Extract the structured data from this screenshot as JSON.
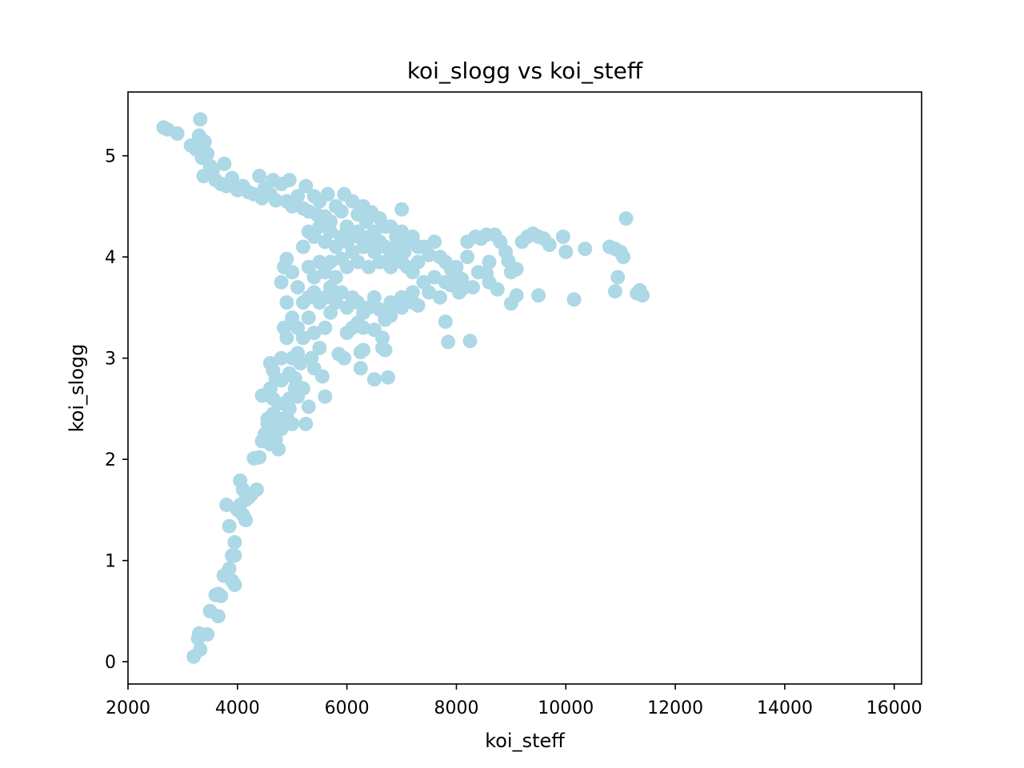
{
  "chart_data": {
    "type": "scatter",
    "title": "koi_slogg vs koi_steff",
    "xlabel": "koi_steff",
    "ylabel": "koi_slogg",
    "xlim": [
      2000,
      16500
    ],
    "ylim": [
      -0.22,
      5.63
    ],
    "xticks": [
      2000,
      4000,
      6000,
      8000,
      10000,
      12000,
      14000,
      16000
    ],
    "yticks": [
      0,
      1,
      2,
      3,
      4,
      5
    ],
    "grid": false,
    "legend": "none",
    "marker_color": "#add8e6",
    "points": [
      [
        2650,
        5.28
      ],
      [
        2720,
        5.26
      ],
      [
        2900,
        5.22
      ],
      [
        3150,
        5.1
      ],
      [
        3250,
        5.06
      ],
      [
        3300,
        5.2
      ],
      [
        3320,
        5.36
      ],
      [
        3400,
        5.14
      ],
      [
        3450,
        5.02
      ],
      [
        3350,
        4.98
      ],
      [
        3380,
        4.8
      ],
      [
        3500,
        4.9
      ],
      [
        3550,
        4.86
      ],
      [
        3600,
        4.76
      ],
      [
        3700,
        4.72
      ],
      [
        3800,
        4.7
      ],
      [
        3760,
        4.92
      ],
      [
        3900,
        4.78
      ],
      [
        4000,
        4.66
      ],
      [
        4100,
        4.7
      ],
      [
        4200,
        4.64
      ],
      [
        4300,
        4.62
      ],
      [
        4400,
        4.8
      ],
      [
        4450,
        4.58
      ],
      [
        4500,
        4.68
      ],
      [
        4600,
        4.62
      ],
      [
        4650,
        4.76
      ],
      [
        4700,
        4.56
      ],
      [
        4800,
        4.72
      ],
      [
        4900,
        4.55
      ],
      [
        4950,
        4.76
      ],
      [
        5000,
        4.5
      ],
      [
        5100,
        4.6
      ],
      [
        5200,
        4.48
      ],
      [
        5250,
        4.7
      ],
      [
        5300,
        4.45
      ],
      [
        5400,
        4.6
      ],
      [
        5450,
        4.42
      ],
      [
        5500,
        4.55
      ],
      [
        5600,
        4.4
      ],
      [
        5650,
        4.62
      ],
      [
        5700,
        4.35
      ],
      [
        5800,
        4.5
      ],
      [
        5900,
        4.45
      ],
      [
        5950,
        4.62
      ],
      [
        6000,
        4.3
      ],
      [
        6100,
        4.55
      ],
      [
        6200,
        4.42
      ],
      [
        6300,
        4.5
      ],
      [
        6350,
        4.35
      ],
      [
        6450,
        4.44
      ],
      [
        6500,
        4.25
      ],
      [
        6600,
        4.38
      ],
      [
        6700,
        4.3
      ],
      [
        6800,
        4.3
      ],
      [
        6900,
        4.2
      ],
      [
        7000,
        4.25
      ],
      [
        7000,
        4.47
      ],
      [
        7100,
        4.15
      ],
      [
        7200,
        4.2
      ],
      [
        7300,
        4.1
      ],
      [
        7400,
        4.1
      ],
      [
        7500,
        4.02
      ],
      [
        7600,
        4.15
      ],
      [
        7700,
        4.0
      ],
      [
        7800,
        3.95
      ],
      [
        7900,
        3.88
      ],
      [
        8000,
        3.82
      ],
      [
        8100,
        3.78
      ],
      [
        8200,
        4.15
      ],
      [
        8350,
        4.2
      ],
      [
        8450,
        4.18
      ],
      [
        8550,
        4.22
      ],
      [
        8700,
        4.22
      ],
      [
        8800,
        4.15
      ],
      [
        8900,
        4.05
      ],
      [
        8950,
        3.96
      ],
      [
        9000,
        3.85
      ],
      [
        9100,
        3.88
      ],
      [
        9200,
        4.15
      ],
      [
        9300,
        4.2
      ],
      [
        9400,
        4.23
      ],
      [
        9500,
        4.2
      ],
      [
        9600,
        4.18
      ],
      [
        9700,
        4.12
      ],
      [
        9950,
        4.2
      ],
      [
        10000,
        4.05
      ],
      [
        10350,
        4.08
      ],
      [
        10800,
        4.1
      ],
      [
        10900,
        4.08
      ],
      [
        11000,
        4.05
      ],
      [
        11050,
        4.0
      ],
      [
        11100,
        4.38
      ],
      [
        10950,
        3.8
      ],
      [
        10900,
        3.66
      ],
      [
        11300,
        3.64
      ],
      [
        11350,
        3.67
      ],
      [
        11400,
        3.62
      ],
      [
        10150,
        3.58
      ],
      [
        9500,
        3.62
      ],
      [
        9100,
        3.62
      ],
      [
        9000,
        3.54
      ],
      [
        8750,
        3.68
      ],
      [
        8550,
        3.84
      ],
      [
        8600,
        3.75
      ],
      [
        8300,
        3.7
      ],
      [
        8100,
        3.68
      ],
      [
        8050,
        3.65
      ],
      [
        7900,
        3.72
      ],
      [
        7700,
        3.6
      ],
      [
        7500,
        3.65
      ],
      [
        7300,
        3.52
      ],
      [
        7200,
        3.55
      ],
      [
        7000,
        3.5
      ],
      [
        6800,
        3.42
      ],
      [
        6700,
        3.38
      ],
      [
        6650,
        3.2
      ],
      [
        6650,
        3.1
      ],
      [
        6700,
        3.08
      ],
      [
        6500,
        3.28
      ],
      [
        6300,
        3.3
      ],
      [
        6250,
        3.06
      ],
      [
        6300,
        3.08
      ],
      [
        6200,
        3.35
      ],
      [
        6100,
        3.3
      ],
      [
        6000,
        3.25
      ],
      [
        5850,
        3.04
      ],
      [
        5950,
        3.0
      ],
      [
        6250,
        2.9
      ],
      [
        6500,
        2.79
      ],
      [
        6750,
        2.81
      ],
      [
        7800,
        3.36
      ],
      [
        7850,
        3.16
      ],
      [
        8250,
        3.17
      ],
      [
        5800,
        3.6
      ],
      [
        5700,
        3.45
      ],
      [
        5600,
        3.3
      ],
      [
        5500,
        3.1
      ],
      [
        5550,
        2.82
      ],
      [
        5600,
        2.62
      ],
      [
        5400,
        2.9
      ],
      [
        5350,
        3.0
      ],
      [
        5300,
        2.52
      ],
      [
        5200,
        2.7
      ],
      [
        5250,
        2.35
      ],
      [
        5100,
        2.62
      ],
      [
        5000,
        2.35
      ],
      [
        5050,
        2.8
      ],
      [
        4950,
        2.5
      ],
      [
        4900,
        2.42
      ],
      [
        4800,
        2.3
      ],
      [
        4750,
        2.55
      ],
      [
        4700,
        2.2
      ],
      [
        4650,
        2.6
      ],
      [
        4600,
        2.95
      ],
      [
        4700,
        2.8
      ],
      [
        4800,
        3.0
      ],
      [
        4850,
        3.3
      ],
      [
        4900,
        3.2
      ],
      [
        5000,
        3.4
      ],
      [
        4900,
        3.55
      ],
      [
        4800,
        3.75
      ],
      [
        4850,
        3.9
      ],
      [
        4900,
        3.98
      ],
      [
        5000,
        3.85
      ],
      [
        5100,
        3.7
      ],
      [
        5200,
        3.55
      ],
      [
        5300,
        3.9
      ],
      [
        5400,
        3.8
      ],
      [
        5500,
        3.95
      ],
      [
        5600,
        3.85
      ],
      [
        5700,
        3.95
      ],
      [
        5800,
        3.8
      ],
      [
        5900,
        3.98
      ],
      [
        6000,
        3.9
      ],
      [
        6100,
        4.05
      ],
      [
        6200,
        3.95
      ],
      [
        6300,
        4.1
      ],
      [
        6400,
        3.9
      ],
      [
        6500,
        4.05
      ],
      [
        6600,
        3.95
      ],
      [
        6700,
        3.95
      ],
      [
        6800,
        3.9
      ],
      [
        6900,
        4.0
      ],
      [
        7000,
        3.95
      ],
      [
        7100,
        3.9
      ],
      [
        7200,
        3.85
      ],
      [
        7300,
        3.95
      ],
      [
        5200,
        4.1
      ],
      [
        5300,
        4.25
      ],
      [
        5400,
        4.2
      ],
      [
        5500,
        4.3
      ],
      [
        5600,
        4.15
      ],
      [
        5700,
        4.25
      ],
      [
        5800,
        4.1
      ],
      [
        5900,
        4.2
      ],
      [
        6000,
        4.15
      ],
      [
        6100,
        4.2
      ],
      [
        6200,
        4.25
      ],
      [
        6300,
        4.15
      ],
      [
        6400,
        4.2
      ],
      [
        6500,
        4.1
      ],
      [
        6600,
        4.15
      ],
      [
        6700,
        4.1
      ],
      [
        6800,
        4.05
      ],
      [
        6900,
        4.1
      ],
      [
        7050,
        4.05
      ],
      [
        5300,
        3.6
      ],
      [
        5400,
        3.65
      ],
      [
        5500,
        3.55
      ],
      [
        5600,
        3.6
      ],
      [
        5700,
        3.7
      ],
      [
        5800,
        3.55
      ],
      [
        5900,
        3.65
      ],
      [
        6000,
        3.5
      ],
      [
        6100,
        3.6
      ],
      [
        6200,
        3.55
      ],
      [
        6300,
        3.45
      ],
      [
        6400,
        3.5
      ],
      [
        6500,
        3.6
      ],
      [
        6600,
        3.48
      ],
      [
        6800,
        3.55
      ],
      [
        7000,
        3.6
      ],
      [
        7200,
        3.65
      ],
      [
        7400,
        3.75
      ],
      [
        7600,
        3.8
      ],
      [
        7800,
        3.75
      ],
      [
        8000,
        3.9
      ],
      [
        8200,
        4.0
      ],
      [
        8400,
        3.85
      ],
      [
        8600,
        3.95
      ],
      [
        5100,
        3.3
      ],
      [
        5200,
        3.2
      ],
      [
        5300,
        3.4
      ],
      [
        5400,
        3.25
      ],
      [
        5100,
        3.05
      ],
      [
        5000,
        3.0
      ],
      [
        4950,
        2.85
      ],
      [
        5150,
        2.95
      ],
      [
        5050,
        2.7
      ],
      [
        4950,
        2.6
      ],
      [
        4850,
        2.55
      ],
      [
        4800,
        2.78
      ],
      [
        4750,
        2.4
      ],
      [
        4700,
        2.32
      ],
      [
        4650,
        2.45
      ],
      [
        4550,
        2.35
      ],
      [
        4500,
        2.25
      ],
      [
        4450,
        2.18
      ],
      [
        4600,
        2.15
      ],
      [
        4750,
        2.1
      ],
      [
        4400,
        2.02
      ],
      [
        4300,
        2.01
      ],
      [
        4550,
        2.4
      ],
      [
        4450,
        2.63
      ],
      [
        4600,
        2.7
      ],
      [
        4650,
        2.88
      ],
      [
        4350,
        1.7
      ],
      [
        4250,
        1.65
      ],
      [
        4200,
        1.62
      ],
      [
        4150,
        1.6
      ],
      [
        4050,
        1.55
      ],
      [
        4000,
        1.5
      ],
      [
        4100,
        1.45
      ],
      [
        4150,
        1.4
      ],
      [
        4050,
        1.79
      ],
      [
        4100,
        1.7
      ],
      [
        3800,
        1.55
      ],
      [
        3850,
        1.34
      ],
      [
        3950,
        1.18
      ],
      [
        3950,
        1.05
      ],
      [
        3900,
        1.05
      ],
      [
        3850,
        0.92
      ],
      [
        3800,
        0.87
      ],
      [
        3750,
        0.85
      ],
      [
        3900,
        0.8
      ],
      [
        3950,
        0.76
      ],
      [
        3650,
        0.67
      ],
      [
        3600,
        0.66
      ],
      [
        3700,
        0.65
      ],
      [
        3500,
        0.5
      ],
      [
        3650,
        0.45
      ],
      [
        3450,
        0.27
      ],
      [
        3300,
        0.28
      ],
      [
        3280,
        0.23
      ],
      [
        3320,
        0.12
      ],
      [
        3200,
        0.05
      ]
    ]
  }
}
